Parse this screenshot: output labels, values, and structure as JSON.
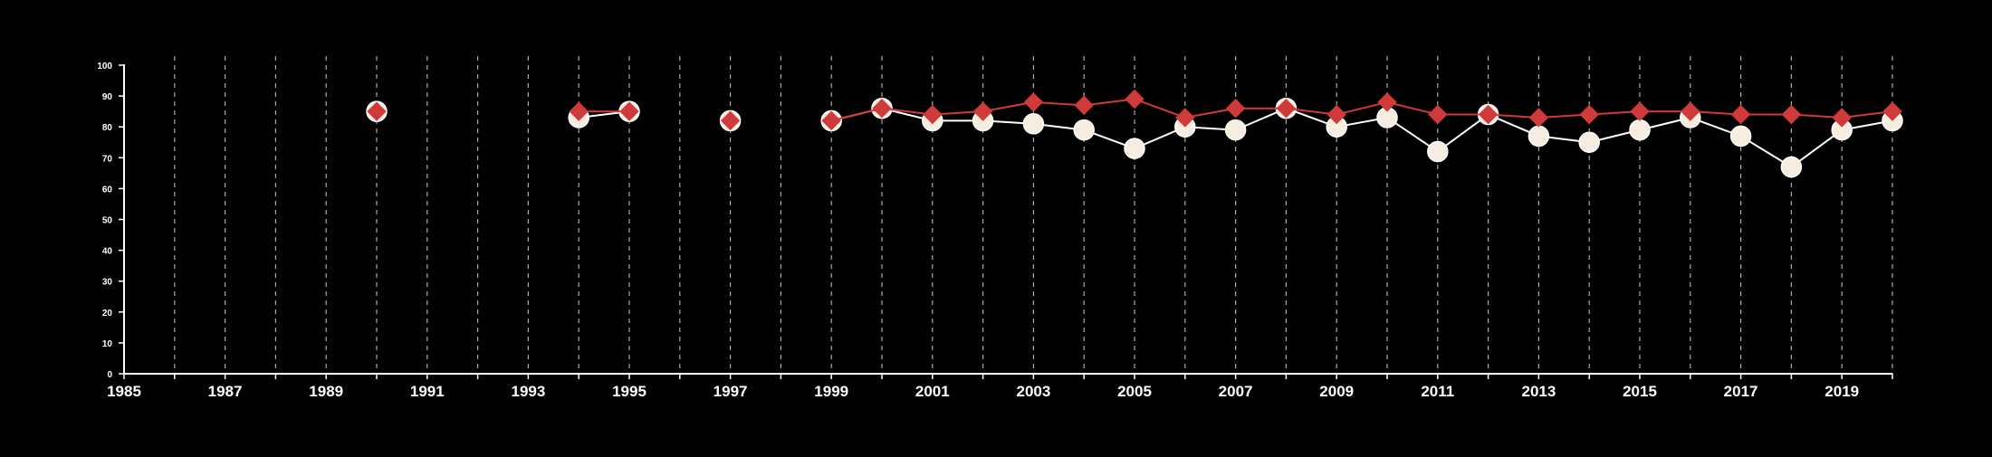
{
  "chart_data": {
    "type": "line",
    "title": "",
    "xlabel": "",
    "ylabel": "",
    "xlim": [
      1985,
      2020
    ],
    "ylim": [
      0,
      100
    ],
    "x_ticks_major": [
      1985,
      1987,
      1989,
      1991,
      1993,
      1995,
      1997,
      1999,
      2001,
      2003,
      2005,
      2007,
      2009,
      2011,
      2013,
      2015,
      2017,
      2019
    ],
    "x_tick_labels": [
      "1985",
      "1987",
      "1989",
      "1991",
      "1993",
      "1995",
      "1997",
      "1999",
      "2001",
      "2003",
      "2005",
      "2007",
      "2009",
      "2011",
      "2013",
      "2015",
      "2017",
      "2019"
    ],
    "y_ticks": [
      0,
      10,
      20,
      30,
      40,
      50,
      60,
      70,
      80,
      90,
      100
    ],
    "y_tick_labels": [
      "0",
      "10",
      "20",
      "30",
      "40",
      "50",
      "60",
      "70",
      "80",
      "90",
      "100"
    ],
    "grid": "vertical dashed lines at each year",
    "background_color": "#000000",
    "axis_color": "#ffffff",
    "grid_color": "#aaaaaa",
    "series": [
      {
        "marker": "circle",
        "color": "#f7ece0",
        "line_color": "#ffffff",
        "points": [
          [
            1990,
            85
          ],
          [
            1994,
            83
          ],
          [
            1995,
            85
          ],
          [
            1997,
            82
          ],
          [
            1999,
            82
          ],
          [
            2000,
            86
          ],
          [
            2001,
            82
          ],
          [
            2002,
            82
          ],
          [
            2003,
            81
          ],
          [
            2004,
            79
          ],
          [
            2005,
            73
          ],
          [
            2006,
            80
          ],
          [
            2007,
            79
          ],
          [
            2008,
            86
          ],
          [
            2009,
            80
          ],
          [
            2010,
            83
          ],
          [
            2011,
            72
          ],
          [
            2012,
            84
          ],
          [
            2013,
            77
          ],
          [
            2014,
            75
          ],
          [
            2015,
            79
          ],
          [
            2016,
            83
          ],
          [
            2017,
            77
          ],
          [
            2018,
            67
          ],
          [
            2019,
            79
          ],
          [
            2020,
            82
          ]
        ]
      },
      {
        "marker": "diamond",
        "color": "#d03a3a",
        "line_color": "#d03a3a",
        "points": [
          [
            1990,
            85
          ],
          [
            1994,
            85
          ],
          [
            1995,
            85
          ],
          [
            1997,
            82
          ],
          [
            1999,
            82
          ],
          [
            2000,
            86
          ],
          [
            2001,
            84
          ],
          [
            2002,
            85
          ],
          [
            2003,
            88
          ],
          [
            2004,
            87
          ],
          [
            2005,
            89
          ],
          [
            2006,
            83
          ],
          [
            2007,
            86
          ],
          [
            2008,
            86
          ],
          [
            2009,
            84
          ],
          [
            2010,
            88
          ],
          [
            2011,
            84
          ],
          [
            2012,
            84
          ],
          [
            2013,
            83
          ],
          [
            2014,
            84
          ],
          [
            2015,
            85
          ],
          [
            2016,
            85
          ],
          [
            2017,
            84
          ],
          [
            2018,
            84
          ],
          [
            2019,
            83
          ],
          [
            2020,
            85
          ]
        ]
      }
    ]
  }
}
